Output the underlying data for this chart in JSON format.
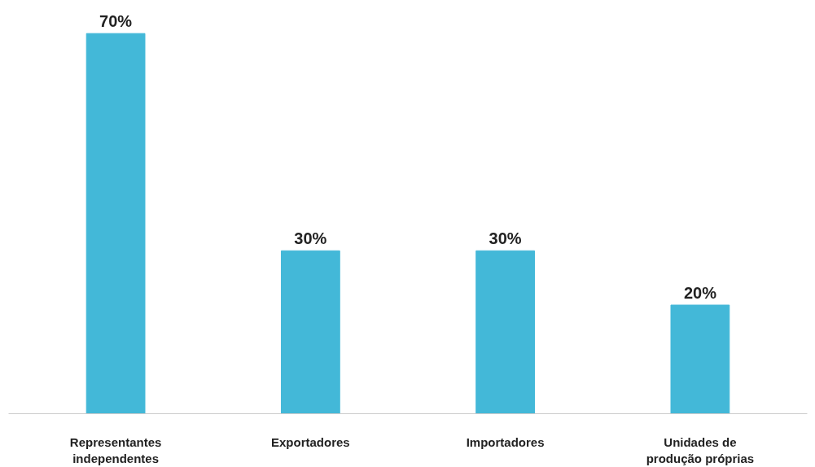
{
  "chart_data": {
    "type": "bar",
    "categories": [
      "Representantes independentes",
      "Exportadores",
      "Importadores",
      "Unidades de produção próprias"
    ],
    "values": [
      70,
      30,
      30,
      20
    ],
    "color": "#43b8d8",
    "data_labels": true,
    "value_labels": [
      "70%",
      "30%",
      "30%",
      "20%"
    ],
    "tick_labels": "x"
  }
}
